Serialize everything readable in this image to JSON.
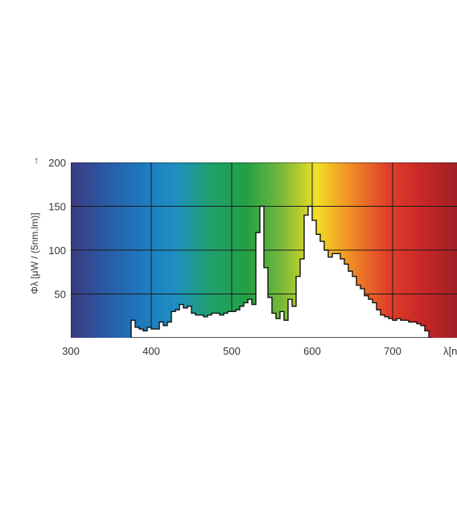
{
  "chart_data": {
    "type": "area",
    "title": "",
    "xlabel": "λ[nm]",
    "ylabel": "Φλ [μW / (5nm.lm)]",
    "ylabel_arrow": "→",
    "xlim": [
      300,
      780
    ],
    "ylim": [
      0,
      200
    ],
    "x_ticks": [
      300,
      400,
      500,
      600,
      700
    ],
    "y_ticks": [
      50,
      100,
      150,
      200
    ],
    "grid": true,
    "background": "visible spectrum color gradient",
    "spectrum_colors": [
      "#3b3a80",
      "#2a5aa6",
      "#1e78bf",
      "#1f8fc0",
      "#1fa06a",
      "#22a046",
      "#76b83a",
      "#f3df24",
      "#f08a25",
      "#e0402a",
      "#c72826",
      "#a11f26"
    ],
    "series": [
      {
        "values_step": [
          [
            375,
            20
          ],
          [
            380,
            12
          ],
          [
            385,
            10
          ],
          [
            390,
            8
          ],
          [
            395,
            12
          ],
          [
            400,
            10
          ],
          [
            405,
            10
          ],
          [
            410,
            18
          ],
          [
            415,
            14
          ],
          [
            420,
            18
          ],
          [
            425,
            30
          ],
          [
            430,
            32
          ],
          [
            435,
            38
          ],
          [
            440,
            34
          ],
          [
            445,
            36
          ],
          [
            450,
            28
          ],
          [
            455,
            26
          ],
          [
            460,
            26
          ],
          [
            465,
            24
          ],
          [
            470,
            26
          ],
          [
            475,
            28
          ],
          [
            480,
            28
          ],
          [
            485,
            26
          ],
          [
            490,
            28
          ],
          [
            495,
            30
          ],
          [
            500,
            30
          ],
          [
            505,
            32
          ],
          [
            510,
            36
          ],
          [
            515,
            40
          ],
          [
            520,
            44
          ],
          [
            525,
            38
          ],
          [
            530,
            120
          ],
          [
            535,
            150
          ],
          [
            540,
            80
          ],
          [
            545,
            46
          ],
          [
            550,
            28
          ],
          [
            555,
            22
          ],
          [
            560,
            30
          ],
          [
            565,
            20
          ],
          [
            570,
            44
          ],
          [
            575,
            36
          ],
          [
            580,
            70
          ],
          [
            585,
            90
          ],
          [
            590,
            140
          ],
          [
            595,
            150
          ],
          [
            600,
            134
          ],
          [
            605,
            118
          ],
          [
            610,
            110
          ],
          [
            615,
            100
          ],
          [
            620,
            92
          ],
          [
            625,
            96
          ],
          [
            630,
            96
          ],
          [
            635,
            90
          ],
          [
            640,
            84
          ],
          [
            645,
            76
          ],
          [
            650,
            70
          ],
          [
            655,
            60
          ],
          [
            660,
            56
          ],
          [
            665,
            48
          ],
          [
            670,
            44
          ],
          [
            675,
            40
          ],
          [
            680,
            32
          ],
          [
            685,
            26
          ],
          [
            690,
            24
          ],
          [
            695,
            22
          ],
          [
            700,
            20
          ],
          [
            705,
            22
          ],
          [
            710,
            20
          ],
          [
            715,
            20
          ],
          [
            720,
            18
          ],
          [
            725,
            18
          ],
          [
            730,
            16
          ],
          [
            735,
            14
          ],
          [
            740,
            8
          ],
          [
            745,
            0
          ]
        ]
      }
    ]
  }
}
